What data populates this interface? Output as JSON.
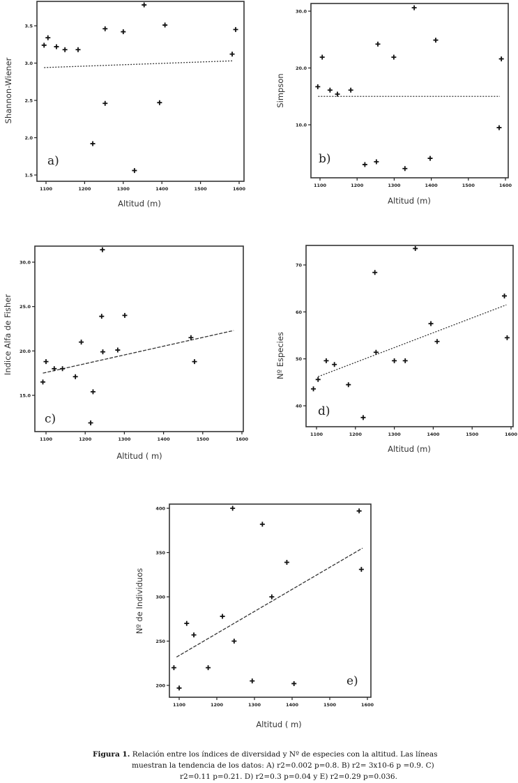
{
  "chart_data": [
    {
      "id": "a",
      "type": "scatter",
      "panel_label": "a)",
      "xlabel": "Altitud (m)",
      "ylabel": "Shannon-Wiener",
      "xticks": [
        "1100",
        "1200",
        "1300",
        "1400",
        "1500",
        "1600"
      ],
      "xtick_values": [
        1100,
        1200,
        1300,
        1400,
        1500,
        1600
      ],
      "yticks": [
        "1.5",
        "2.0",
        "2.5",
        "3.0",
        "3.5"
      ],
      "ytick_values": [
        1.5,
        2.0,
        2.5,
        3.0,
        3.5
      ],
      "xlim": [
        1090,
        1600
      ],
      "ylim": [
        1.5,
        3.8
      ],
      "points": [
        [
          1095,
          3.24
        ],
        [
          1105,
          3.34
        ],
        [
          1127,
          3.22
        ],
        [
          1149,
          3.18
        ],
        [
          1183,
          3.18
        ],
        [
          1221,
          1.92
        ],
        [
          1253,
          3.46
        ],
        [
          1253,
          2.46
        ],
        [
          1300,
          3.42
        ],
        [
          1329,
          1.56
        ],
        [
          1354,
          3.78
        ],
        [
          1394,
          2.47
        ],
        [
          1408,
          3.51
        ],
        [
          1582,
          3.12
        ],
        [
          1591,
          3.45
        ]
      ],
      "trend": [
        [
          1095,
          2.94
        ],
        [
          1582,
          3.03
        ]
      ],
      "trend_style": "dotted"
    },
    {
      "id": "b",
      "type": "scatter",
      "panel_label": "b)",
      "xlabel": "Altitud (m)",
      "ylabel": "Simpson",
      "xticks": [
        "1100",
        "1200",
        "1300",
        "1400",
        "1500",
        "1600"
      ],
      "xtick_values": [
        1100,
        1200,
        1300,
        1400,
        1500,
        1600
      ],
      "yticks": [
        "10.0",
        "20.0",
        "30.0"
      ],
      "ytick_values": [
        10,
        20,
        30
      ],
      "xlim": [
        1090,
        1600
      ],
      "ylim": [
        0,
        31
      ],
      "points": [
        [
          1094,
          16.7
        ],
        [
          1106,
          21.9
        ],
        [
          1127,
          16.1
        ],
        [
          1147,
          15.4
        ],
        [
          1183,
          16.1
        ],
        [
          1221,
          3.0
        ],
        [
          1252,
          3.5
        ],
        [
          1256,
          24.2
        ],
        [
          1299,
          21.9
        ],
        [
          1329,
          2.3
        ],
        [
          1354,
          30.6
        ],
        [
          1397,
          4.1
        ],
        [
          1412,
          24.9
        ],
        [
          1583,
          9.5
        ],
        [
          1589,
          21.6
        ]
      ],
      "trend": [
        [
          1095,
          15.0
        ],
        [
          1585,
          15.0
        ]
      ],
      "trend_style": "dotted"
    },
    {
      "id": "c",
      "type": "scatter",
      "panel_label": "c)",
      "xlabel": "Altitud ( m)",
      "ylabel": "Indice Alfa de Fisher",
      "xticks": [
        "1100",
        "1200",
        "1300",
        "1400",
        "1500",
        "1600"
      ],
      "xtick_values": [
        1100,
        1200,
        1300,
        1400,
        1500,
        1600
      ],
      "yticks": [
        "15.0",
        "20.0",
        "25.0",
        "30.0"
      ],
      "ytick_values": [
        15,
        20,
        25,
        30
      ],
      "xlim": [
        1090,
        1600
      ],
      "ylim": [
        11,
        31.5
      ],
      "points": [
        [
          1092,
          16.5
        ],
        [
          1100,
          18.8
        ],
        [
          1121,
          18.0
        ],
        [
          1142,
          18.0
        ],
        [
          1175,
          17.1
        ],
        [
          1214,
          11.9
        ],
        [
          1242,
          23.9
        ],
        [
          1245,
          19.9
        ],
        [
          1190,
          21.0
        ],
        [
          1220,
          15.4
        ],
        [
          1244,
          31.4
        ],
        [
          1283,
          20.1
        ],
        [
          1301,
          24.0
        ],
        [
          1470,
          21.5
        ],
        [
          1479,
          18.8
        ]
      ],
      "trend": [
        [
          1092,
          17.5
        ],
        [
          1579,
          22.3
        ]
      ],
      "trend_style": "dashed"
    },
    {
      "id": "d",
      "type": "scatter",
      "panel_label": "d)",
      "xlabel": "Altitud (m)",
      "ylabel": "Nº Especies",
      "xticks": [
        "1100",
        "1200",
        "1300",
        "1400",
        "1500",
        "1600"
      ],
      "xtick_values": [
        1100,
        1200,
        1300,
        1400,
        1500,
        1600
      ],
      "yticks": [
        "40",
        "50",
        "60",
        "70"
      ],
      "ytick_values": [
        40,
        50,
        60,
        70
      ],
      "xlim": [
        1090,
        1600
      ],
      "ylim": [
        36,
        74
      ],
      "points": [
        [
          1092,
          43.6
        ],
        [
          1104,
          45.6
        ],
        [
          1125,
          49.6
        ],
        [
          1146,
          48.8
        ],
        [
          1182,
          44.5
        ],
        [
          1220,
          37.5
        ],
        [
          1250,
          68.4
        ],
        [
          1253,
          51.4
        ],
        [
          1300,
          49.6
        ],
        [
          1328,
          49.6
        ],
        [
          1354,
          73.5
        ],
        [
          1394,
          57.5
        ],
        [
          1410,
          53.7
        ],
        [
          1583,
          63.4
        ],
        [
          1590,
          54.5
        ]
      ],
      "trend": [
        [
          1104,
          46.2
        ],
        [
          1588,
          61.5
        ]
      ],
      "trend_style": "dotted"
    },
    {
      "id": "e",
      "type": "scatter",
      "panel_label": "e)",
      "xlabel": "Altitud ( m)",
      "ylabel": "Nº de Individuos",
      "xticks": [
        "1100",
        "1200",
        "1300",
        "1400",
        "1500",
        "1600"
      ],
      "xtick_values": [
        1100,
        1200,
        1300,
        1400,
        1500,
        1600
      ],
      "yticks": [
        "200",
        "250",
        "300",
        "350",
        "400"
      ],
      "ytick_values": [
        200,
        250,
        300,
        350,
        400
      ],
      "xlim": [
        1090,
        1600
      ],
      "ylim": [
        195,
        400
      ],
      "points": [
        [
          1086,
          220
        ],
        [
          1100,
          197
        ],
        [
          1120,
          270
        ],
        [
          1139,
          257
        ],
        [
          1177,
          220
        ],
        [
          1215,
          278
        ],
        [
          1242,
          400
        ],
        [
          1246,
          250
        ],
        [
          1294,
          205
        ],
        [
          1321,
          382
        ],
        [
          1346,
          300
        ],
        [
          1386,
          339
        ],
        [
          1405,
          202
        ],
        [
          1578,
          397
        ],
        [
          1584,
          331
        ]
      ],
      "trend": [
        [
          1093,
          232
        ],
        [
          1587,
          355
        ]
      ],
      "trend_style": "dashed"
    }
  ],
  "caption": {
    "label": "Figura 1.",
    "line1": " Relación entre los índices de diversidad y Nº de especies con la altitud. Las líneas",
    "line2": "muestran la tendencia de los datos: A) r2=0.002 p=0.8. B) r2= 3x10-6 p =0.9. C)",
    "line3": "r2=0.11 p=0.21. D) r2=0.3 p=0.04 y E) r2=0.29 p=0.036."
  }
}
